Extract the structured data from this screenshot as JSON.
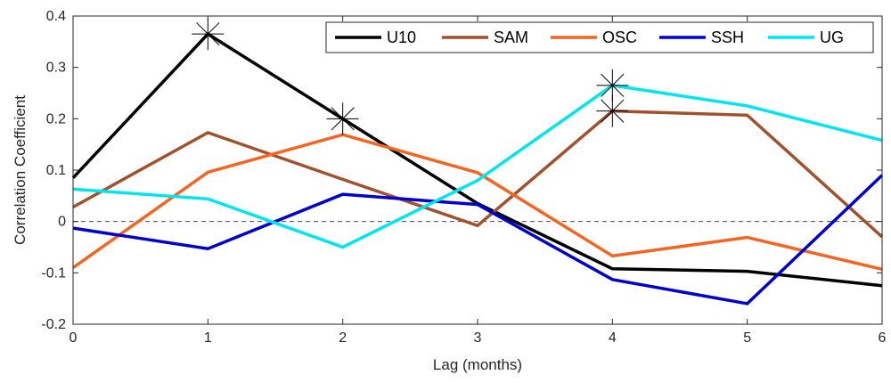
{
  "chart_data": {
    "type": "line",
    "title": "",
    "xlabel": "Lag (months)",
    "ylabel": "Correlation Coefficient",
    "xlim": [
      0,
      6
    ],
    "ylim": [
      -0.2,
      0.4
    ],
    "xticks": [
      0,
      1,
      2,
      3,
      4,
      5,
      6
    ],
    "yticks": [
      -0.2,
      -0.1,
      0,
      0.1,
      0.2,
      0.3,
      0.4
    ],
    "xtick_labels": [
      "0",
      "1",
      "2",
      "3",
      "4",
      "5",
      "6"
    ],
    "ytick_labels": [
      "-0.2",
      "-0.1",
      "0",
      "0.1",
      "0.2",
      "0.3",
      "0.4"
    ],
    "grid": false,
    "zero_line": "dashed",
    "legend_position": "top-right",
    "legend_orientation": "horizontal",
    "x": [
      0,
      1,
      2,
      3,
      4,
      5,
      6
    ],
    "series": [
      {
        "name": "U10",
        "color": "#000000",
        "values": [
          0.085,
          0.365,
          0.2,
          0.035,
          -0.092,
          -0.097,
          -0.125
        ]
      },
      {
        "name": "SAM",
        "color": "#A0522D",
        "values": [
          0.028,
          0.173,
          0.082,
          -0.008,
          0.215,
          0.207,
          -0.03
        ]
      },
      {
        "name": "OSC",
        "color": "#F26522",
        "values": [
          -0.09,
          0.096,
          0.169,
          0.095,
          -0.067,
          -0.031,
          -0.093
        ]
      },
      {
        "name": "SSH",
        "color": "#0000CD",
        "values": [
          -0.013,
          -0.053,
          0.053,
          0.033,
          -0.113,
          -0.16,
          0.09
        ]
      },
      {
        "name": "UG",
        "color": "#00E5EE",
        "values": [
          0.063,
          0.044,
          -0.05,
          0.08,
          0.265,
          0.225,
          0.158
        ]
      }
    ],
    "markers": [
      {
        "series": "U10",
        "x": 1,
        "y": 0.365,
        "symbol": "asterisk"
      },
      {
        "series": "U10",
        "x": 2,
        "y": 0.2,
        "symbol": "asterisk"
      },
      {
        "series": "UG",
        "x": 4,
        "y": 0.265,
        "symbol": "asterisk"
      },
      {
        "series": "SAM",
        "x": 4,
        "y": 0.215,
        "symbol": "asterisk"
      }
    ]
  }
}
